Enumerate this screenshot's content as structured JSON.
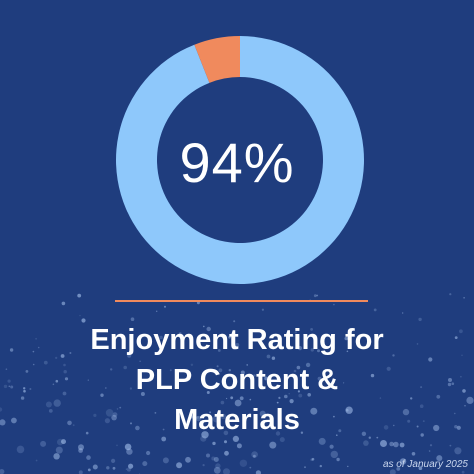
{
  "colors": {
    "background": "#1f3d7e",
    "ring_main": "#8ec8fb",
    "ring_accent": "#f08a5d",
    "divider": "#f08a5d",
    "text": "#ffffff"
  },
  "chart_data": {
    "type": "pie",
    "donut": true,
    "categories": [
      "",
      ""
    ],
    "values": [
      94,
      6
    ],
    "center_label": "94%"
  },
  "title_lines": [
    "Enjoyment Rating for",
    "PLP Content &",
    "Materials"
  ],
  "footnote": "as of January 2025"
}
